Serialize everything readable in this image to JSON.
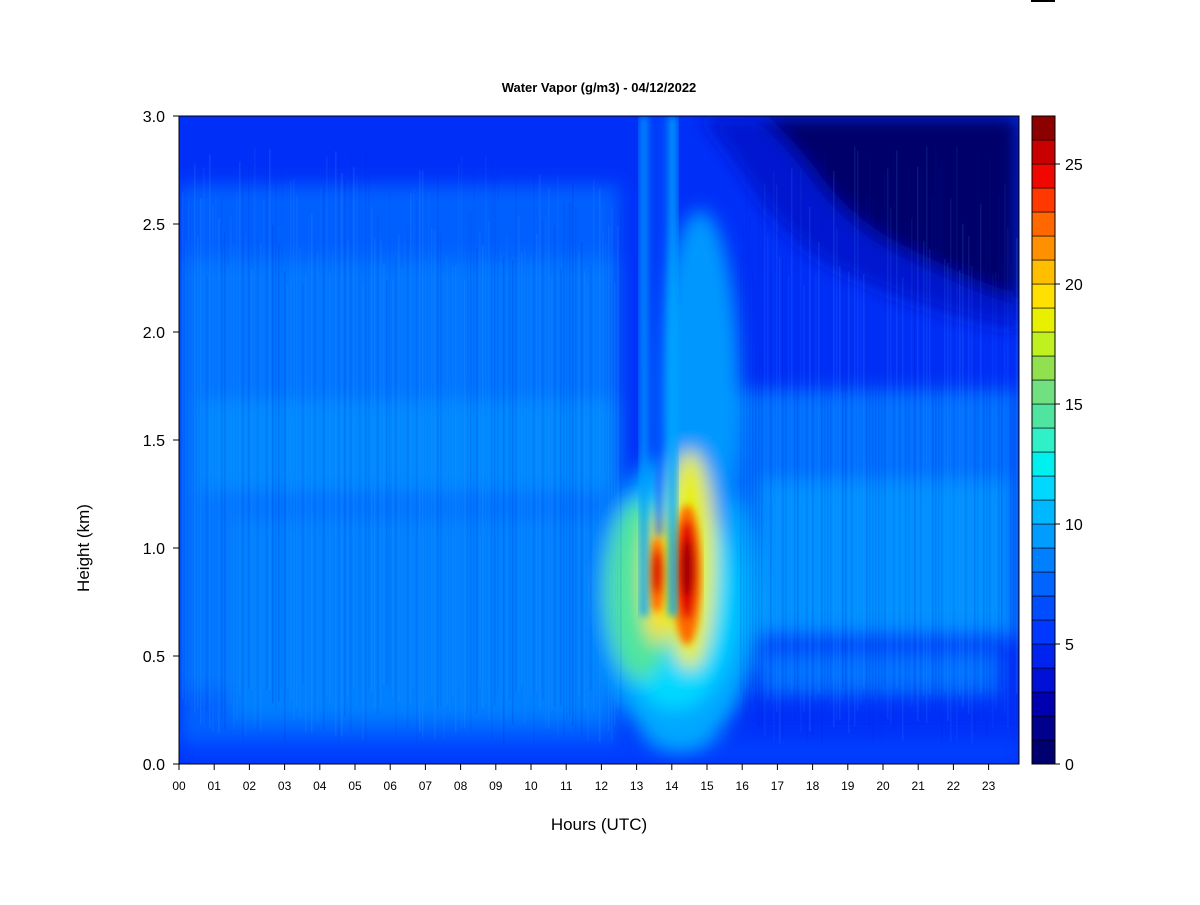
{
  "chart_data": {
    "type": "heatmap",
    "title": "Water Vapor (g/m3) - 04/12/2022",
    "xlabel": "Hours (UTC)",
    "ylabel": "Height (km)",
    "xlim": [
      0,
      23.9
    ],
    "ylim": [
      0,
      3.0
    ],
    "x_ticks": [
      "00",
      "01",
      "02",
      "03",
      "04",
      "05",
      "06",
      "07",
      "08",
      "09",
      "10",
      "11",
      "12",
      "13",
      "14",
      "15",
      "16",
      "17",
      "18",
      "19",
      "20",
      "21",
      "22",
      "23"
    ],
    "y_ticks": [
      "0.0",
      "0.5",
      "1.0",
      "1.5",
      "2.0",
      "2.5",
      "3.0"
    ],
    "colorbar": {
      "min": 0,
      "max": 27,
      "levels": 27,
      "tick_values": [
        0,
        5,
        10,
        15,
        20,
        25
      ],
      "tick_labels": [
        "0",
        "5",
        "10",
        "15",
        "20",
        "25"
      ],
      "colors": [
        "#00006e",
        "#00008c",
        "#0000b0",
        "#0010d6",
        "#0024f0",
        "#0038ff",
        "#004cff",
        "#0064ff",
        "#0080ff",
        "#009cff",
        "#00b8ff",
        "#00d8ff",
        "#00f0f0",
        "#30f0c8",
        "#50e4a0",
        "#70e080",
        "#90e050",
        "#c0f020",
        "#e8f000",
        "#ffe000",
        "#ffbe00",
        "#ff9000",
        "#ff6800",
        "#ff3800",
        "#f00800",
        "#c80000",
        "#8c0000"
      ]
    },
    "features": [
      {
        "hour": 13.55,
        "height_km": 0.85,
        "value": 24
      },
      {
        "hour": 14.4,
        "height_km": 0.88,
        "value": 26
      },
      {
        "hour": 14.5,
        "height_km": 1.3,
        "value": 17
      },
      {
        "hour": 12.8,
        "height_km": 0.9,
        "value": 12
      },
      {
        "hour": 19.0,
        "height_km": 0.85,
        "value": 8
      },
      {
        "hour": 21.5,
        "height_km": 2.85,
        "value": 0.5
      }
    ]
  }
}
